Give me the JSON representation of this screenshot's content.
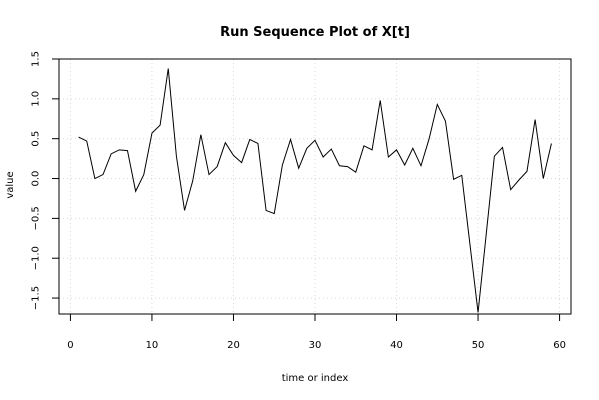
{
  "chart_data": {
    "type": "line",
    "title": "Run Sequence Plot of X[t]",
    "xlabel": "time or index",
    "ylabel": "value",
    "xlim": [
      -1.4,
      61.4
    ],
    "ylim": [
      -1.7,
      1.5
    ],
    "x_ticks": [
      0,
      10,
      20,
      30,
      40,
      50,
      60
    ],
    "y_ticks": [
      -1.5,
      -1.0,
      -0.5,
      0.0,
      0.5,
      1.0,
      1.5
    ],
    "y_tick_labels": [
      "−1.5",
      "−1.0",
      "−0.5",
      "0.0",
      "0.5",
      "1.0",
      "1.5"
    ],
    "grid": true,
    "series": [
      {
        "x": [
          1,
          2,
          3,
          4,
          5,
          6,
          7,
          8,
          9,
          10,
          11,
          12,
          13,
          14,
          15,
          16,
          17,
          18,
          19,
          20,
          21,
          22,
          23,
          24,
          25,
          26,
          27,
          28,
          29,
          30,
          31,
          32,
          33,
          34,
          35,
          36,
          37,
          38,
          39,
          40,
          41,
          42,
          43,
          44,
          45,
          46,
          47,
          48,
          49,
          50,
          51,
          52,
          53,
          54,
          55,
          56,
          57,
          58,
          59
        ],
        "values": [
          0.52,
          0.47,
          0.0,
          0.05,
          0.31,
          0.36,
          0.35,
          -0.16,
          0.05,
          0.57,
          0.67,
          1.38,
          0.28,
          -0.4,
          -0.03,
          0.55,
          0.05,
          0.15,
          0.45,
          0.29,
          0.2,
          0.49,
          0.44,
          -0.4,
          -0.44,
          0.17,
          0.49,
          0.13,
          0.38,
          0.48,
          0.27,
          0.37,
          0.16,
          0.15,
          0.08,
          0.41,
          0.36,
          0.98,
          0.27,
          0.36,
          0.17,
          0.38,
          0.16,
          0.5,
          0.93,
          0.72,
          -0.01,
          0.04,
          -0.82,
          -1.68,
          -0.7,
          0.28,
          0.39,
          -0.14,
          -0.02,
          0.09,
          0.74,
          0.0,
          0.44
        ]
      }
    ]
  }
}
